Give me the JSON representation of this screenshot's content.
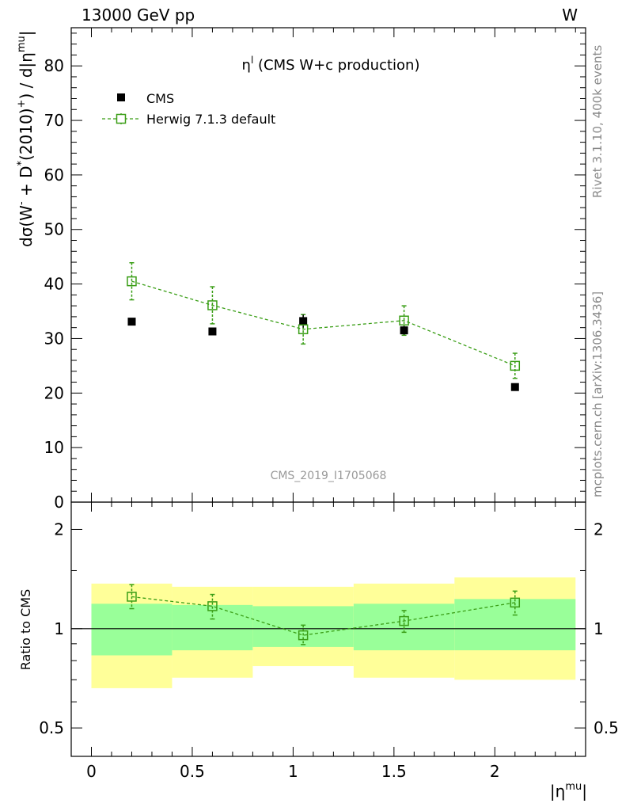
{
  "header": {
    "energy_label": "13000 GeV pp",
    "process_label": "W"
  },
  "side_text": {
    "rivet": "Rivet 3.1.10,  400k events",
    "source": "mcplots.cern.ch [arXiv:1306.3436]"
  },
  "chart_data": [
    {
      "type": "scatter",
      "title": "η^l (CMS W+c production)",
      "title_main": "η",
      "title_sup": "l",
      "title_rest": " (CMS W+c production)",
      "watermark": "CMS_2019_I1705068",
      "ylabel": "dσ(W⁻ + D*(2010)⁺) / d|η^mu|",
      "ylabel_parts": {
        "a": "dσ(W",
        "a_sup": "-",
        "b": " + D",
        "b_sup": "*",
        "c": "(2010)",
        "c_sup": "+",
        "d": ") / d|η",
        "d_sup": "mu",
        "e": "|"
      },
      "xlim": [
        -0.1,
        2.45
      ],
      "ylim": [
        0,
        87
      ],
      "y_ticks": [
        0,
        10,
        20,
        30,
        40,
        50,
        60,
        70,
        80
      ],
      "x_ticks": [
        0,
        0.5,
        1,
        1.5,
        2
      ],
      "legend_position": "top-left",
      "series": [
        {
          "name": "CMS",
          "color": "#000000",
          "marker": "filled-square",
          "x": [
            0.2,
            0.6,
            1.05,
            1.55,
            2.1
          ],
          "y": [
            33.1,
            31.3,
            33.2,
            31.5,
            21.1
          ],
          "yerr": [
            0.6,
            0.6,
            1.2,
            0.8,
            0.6
          ]
        },
        {
          "name": "Herwig 7.1.3 default",
          "color": "#3a9e16",
          "marker": "open-square",
          "line": "dashed",
          "x": [
            0.2,
            0.6,
            1.05,
            1.55,
            2.1
          ],
          "y": [
            40.5,
            36.1,
            31.7,
            33.3,
            25.0
          ],
          "yerr": [
            3.4,
            3.4,
            2.7,
            2.7,
            2.3
          ]
        }
      ]
    },
    {
      "type": "scatter",
      "ylabel": "Ratio to CMS",
      "xlabel": "|η^mu|",
      "xlabel_main": "|η",
      "xlabel_sup": "mu",
      "xlabel_end": "|",
      "xlim": [
        -0.1,
        2.45
      ],
      "ylim": [
        0.41,
        2.42
      ],
      "y_scale": "log",
      "y_ticks": [
        0.5,
        1,
        2
      ],
      "y_tick_labels": [
        "0.5",
        "1",
        "2"
      ],
      "x_ticks": [
        0,
        0.5,
        1,
        1.5,
        2
      ],
      "x_tick_labels": [
        "0",
        "0.5",
        "1",
        "1.5",
        "2"
      ],
      "bands": {
        "bins": [
          [
            0,
            0.4
          ],
          [
            0.4,
            0.8
          ],
          [
            0.8,
            1.3
          ],
          [
            1.3,
            1.8
          ],
          [
            1.8,
            2.4
          ]
        ],
        "inner_low": [
          0.83,
          0.86,
          0.88,
          0.86,
          0.86
        ],
        "inner_high": [
          1.19,
          1.18,
          1.17,
          1.19,
          1.23
        ],
        "outer_low": [
          0.66,
          0.71,
          0.77,
          0.71,
          0.7
        ],
        "outer_high": [
          1.37,
          1.34,
          1.34,
          1.37,
          1.43
        ],
        "inner_color": "#99ff99",
        "outer_color": "#ffff99"
      },
      "series": [
        {
          "name": "Herwig 7.1.3 default",
          "color": "#3a9e16",
          "x": [
            0.2,
            0.6,
            1.05,
            1.55,
            2.1
          ],
          "y": [
            1.25,
            1.17,
            0.955,
            1.055,
            1.2
          ],
          "yerr_low": [
            0.1,
            0.1,
            0.06,
            0.08,
            0.1
          ],
          "yerr_high": [
            0.11,
            0.1,
            0.07,
            0.08,
            0.1
          ]
        }
      ]
    }
  ]
}
